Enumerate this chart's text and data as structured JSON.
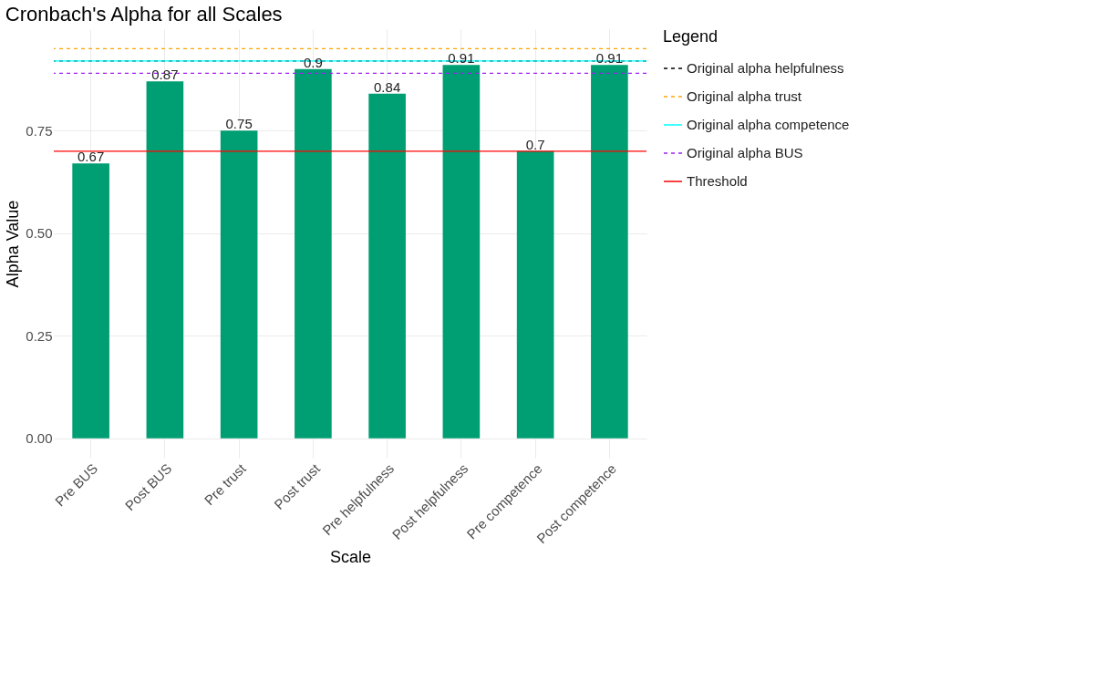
{
  "chart_data": {
    "type": "bar",
    "title": "Cronbach's Alpha for all Scales",
    "xlabel": "Scale",
    "ylabel": "Alpha Value",
    "categories": [
      "Pre BUS",
      "Post BUS",
      "Pre trust",
      "Post trust",
      "Pre helpfulness",
      "Post helpfulness",
      "Pre competence",
      "Post competence"
    ],
    "values": [
      0.67,
      0.87,
      0.75,
      0.9,
      0.84,
      0.91,
      0.7,
      0.91
    ],
    "color": "#009e73",
    "data_labels": true,
    "ylim": [
      -0.0475,
      0.9975
    ],
    "yticks": [
      {
        "value": 0,
        "label": "0.00"
      },
      {
        "value": 0.25,
        "label": "0.25"
      },
      {
        "value": 0.5,
        "label": "0.50"
      },
      {
        "value": 0.75,
        "label": "0.75"
      }
    ],
    "grid": true,
    "legend": "right",
    "legend_title": "Legend",
    "ref_lines": [
      {
        "axis": "y",
        "value": 0.92,
        "label": "Original alpha helpfulness",
        "color": "#000000",
        "line_style": "dashed"
      },
      {
        "axis": "y",
        "value": 0.95,
        "label": "Original alpha trust",
        "color": "#ffa500",
        "line_style": "dashed"
      },
      {
        "axis": "y",
        "value": 0.92,
        "label": "Original alpha competence",
        "color": "#00ffff",
        "line_style": "solid"
      },
      {
        "axis": "y",
        "value": 0.89,
        "label": "Original alpha BUS",
        "color": "#a020f0",
        "line_style": "dashed"
      },
      {
        "axis": "y",
        "value": 0.7,
        "label": "Threshold",
        "color": "#ff0000",
        "line_style": "solid"
      }
    ]
  }
}
